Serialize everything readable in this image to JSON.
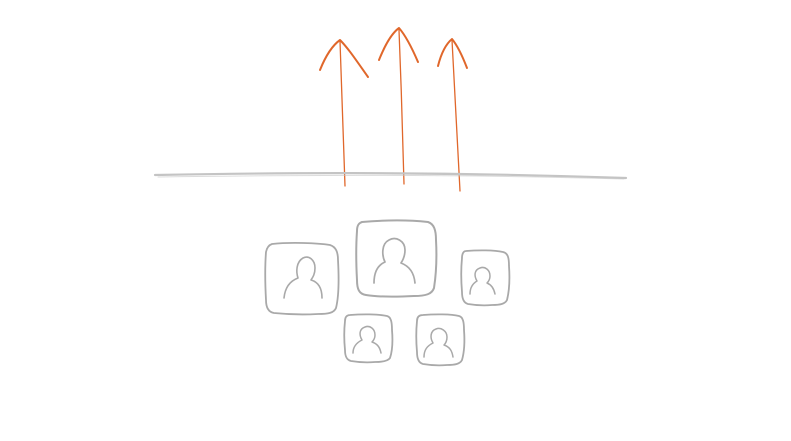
{
  "colors": {
    "background": "#ffffff",
    "arrow": "#e0672b",
    "pencil": "#a9a9a9",
    "baseline": "#c4c4c4"
  },
  "arrows": {
    "count": 3,
    "direction": "up"
  },
  "profiles": {
    "count": 5,
    "icon": "person-silhouette-icon"
  }
}
